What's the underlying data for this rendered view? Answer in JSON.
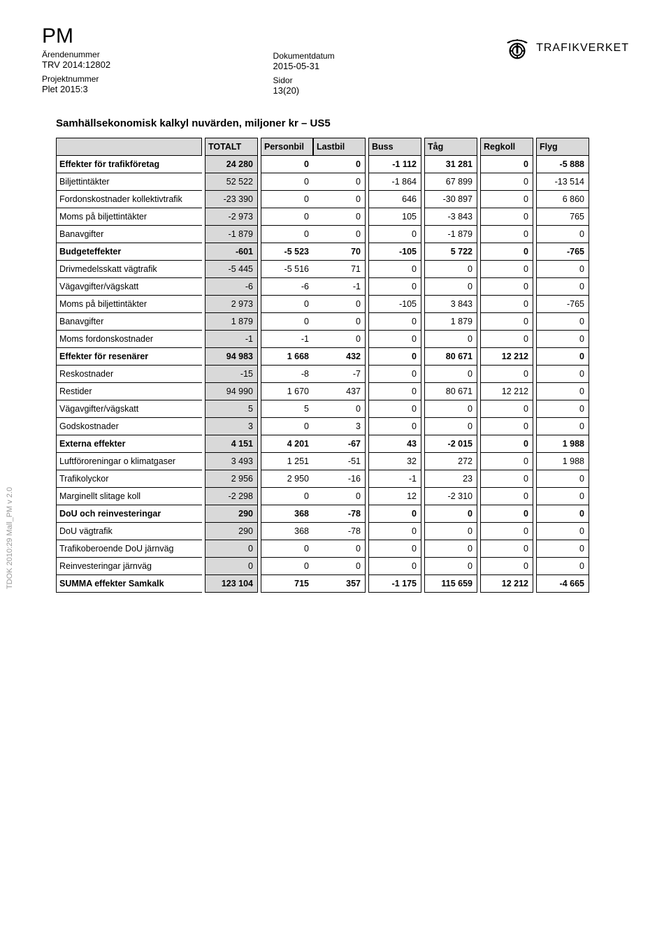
{
  "header": {
    "pm": "PM",
    "arend_label": "Ärendenummer",
    "arend_value": "TRV 2014:12802",
    "proj_label": "Projektnummer",
    "proj_value": "Plet 2015:3",
    "dok_label": "Dokumentdatum",
    "dok_value": "2015-05-31",
    "sidor_label": "Sidor",
    "sidor_value": "13(20)",
    "brand": "TRAFIKVERKET"
  },
  "title": "Samhällsekonomisk kalkyl nuvärden, miljoner kr – US5",
  "columns": [
    "TOTALT",
    "Personbil",
    "Lastbil",
    "Buss",
    "Tåg",
    "Regkoll",
    "Flyg"
  ],
  "rows": [
    {
      "label": "Effekter för trafikföretag",
      "vals": [
        "24 280",
        "0",
        "0",
        "-1 112",
        "31 281",
        "0",
        "-5 888"
      ],
      "bold": true,
      "shaded": true,
      "indent": false
    },
    {
      "label": "Biljettintäkter",
      "vals": [
        "52 522",
        "0",
        "0",
        "-1 864",
        "67 899",
        "0",
        "-13 514"
      ],
      "bold": false,
      "shaded": true,
      "indent": true
    },
    {
      "label": "Fordonskostnader kollektivtrafik",
      "vals": [
        "-23 390",
        "0",
        "0",
        "646",
        "-30 897",
        "0",
        "6 860"
      ],
      "bold": false,
      "shaded": true,
      "indent": true
    },
    {
      "label": "Moms på biljettintäkter",
      "vals": [
        "-2 973",
        "0",
        "0",
        "105",
        "-3 843",
        "0",
        "765"
      ],
      "bold": false,
      "shaded": true,
      "indent": true
    },
    {
      "label": "Banavgifter",
      "vals": [
        "-1 879",
        "0",
        "0",
        "0",
        "-1 879",
        "0",
        "0"
      ],
      "bold": false,
      "shaded": true,
      "indent": true
    },
    {
      "label": "Budgeteffekter",
      "vals": [
        "-601",
        "-5 523",
        "70",
        "-105",
        "5 722",
        "0",
        "-765"
      ],
      "bold": true,
      "shaded": true,
      "indent": false
    },
    {
      "label": "Drivmedelsskatt vägtrafik",
      "vals": [
        "-5 445",
        "-5 516",
        "71",
        "0",
        "0",
        "0",
        "0"
      ],
      "bold": false,
      "shaded": true,
      "indent": true
    },
    {
      "label": "Vägavgifter/vägskatt",
      "vals": [
        "-6",
        "-6",
        "-1",
        "0",
        "0",
        "0",
        "0"
      ],
      "bold": false,
      "shaded": true,
      "indent": true
    },
    {
      "label": "Moms på biljettintäkter",
      "vals": [
        "2 973",
        "0",
        "0",
        "-105",
        "3 843",
        "0",
        "-765"
      ],
      "bold": false,
      "shaded": true,
      "indent": true
    },
    {
      "label": "Banavgifter",
      "vals": [
        "1 879",
        "0",
        "0",
        "0",
        "1 879",
        "0",
        "0"
      ],
      "bold": false,
      "shaded": true,
      "indent": true
    },
    {
      "label": "Moms fordonskostnader",
      "vals": [
        "-1",
        "-1",
        "0",
        "0",
        "0",
        "0",
        "0"
      ],
      "bold": false,
      "shaded": true,
      "indent": true
    },
    {
      "label": "Effekter för resenärer",
      "vals": [
        "94 983",
        "1 668",
        "432",
        "0",
        "80 671",
        "12 212",
        "0"
      ],
      "bold": true,
      "shaded": true,
      "indent": false
    },
    {
      "label": "Reskostnader",
      "vals": [
        "-15",
        "-8",
        "-7",
        "0",
        "0",
        "0",
        "0"
      ],
      "bold": false,
      "shaded": true,
      "indent": true
    },
    {
      "label": "Restider",
      "vals": [
        "94 990",
        "1 670",
        "437",
        "0",
        "80 671",
        "12 212",
        "0"
      ],
      "bold": false,
      "shaded": true,
      "indent": true
    },
    {
      "label": "Vägavgifter/vägskatt",
      "vals": [
        "5",
        "5",
        "0",
        "0",
        "0",
        "0",
        "0"
      ],
      "bold": false,
      "shaded": true,
      "indent": true
    },
    {
      "label": "Godskostnader",
      "vals": [
        "3",
        "0",
        "3",
        "0",
        "0",
        "0",
        "0"
      ],
      "bold": false,
      "shaded": true,
      "indent": true
    },
    {
      "label": "Externa effekter",
      "vals": [
        "4 151",
        "4 201",
        "-67",
        "43",
        "-2 015",
        "0",
        "1 988"
      ],
      "bold": true,
      "shaded": true,
      "indent": false
    },
    {
      "label": "Luftföroreningar o klimatgaser",
      "vals": [
        "3 493",
        "1 251",
        "-51",
        "32",
        "272",
        "0",
        "1 988"
      ],
      "bold": false,
      "shaded": true,
      "indent": true
    },
    {
      "label": "Trafikolyckor",
      "vals": [
        "2 956",
        "2 950",
        "-16",
        "-1",
        "23",
        "0",
        "0"
      ],
      "bold": false,
      "shaded": true,
      "indent": true
    },
    {
      "label": "Marginellt slitage koll",
      "vals": [
        "-2 298",
        "0",
        "0",
        "12",
        "-2 310",
        "0",
        "0"
      ],
      "bold": false,
      "shaded": true,
      "indent": true
    },
    {
      "label": "DoU och reinvesteringar",
      "vals": [
        "290",
        "368",
        "-78",
        "0",
        "0",
        "0",
        "0"
      ],
      "bold": true,
      "shaded": true,
      "indent": false
    },
    {
      "label": "DoU vägtrafik",
      "vals": [
        "290",
        "368",
        "-78",
        "0",
        "0",
        "0",
        "0"
      ],
      "bold": false,
      "shaded": true,
      "indent": true
    },
    {
      "label": "Trafikoberoende DoU järnväg",
      "vals": [
        "0",
        "0",
        "0",
        "0",
        "0",
        "0",
        "0"
      ],
      "bold": false,
      "shaded": true,
      "indent": true
    },
    {
      "label": "Reinvesteringar järnväg",
      "vals": [
        "0",
        "0",
        "0",
        "0",
        "0",
        "0",
        "0"
      ],
      "bold": false,
      "shaded": true,
      "indent": true
    },
    {
      "label": "SUMMA effekter Samkalk",
      "vals": [
        "123 104",
        "715",
        "357",
        "-1 175",
        "115 659",
        "12 212",
        "-4 665"
      ],
      "bold": true,
      "shaded": true,
      "indent": false
    }
  ],
  "side": "TDOK 2010:29 Mall_PM v 2.0"
}
